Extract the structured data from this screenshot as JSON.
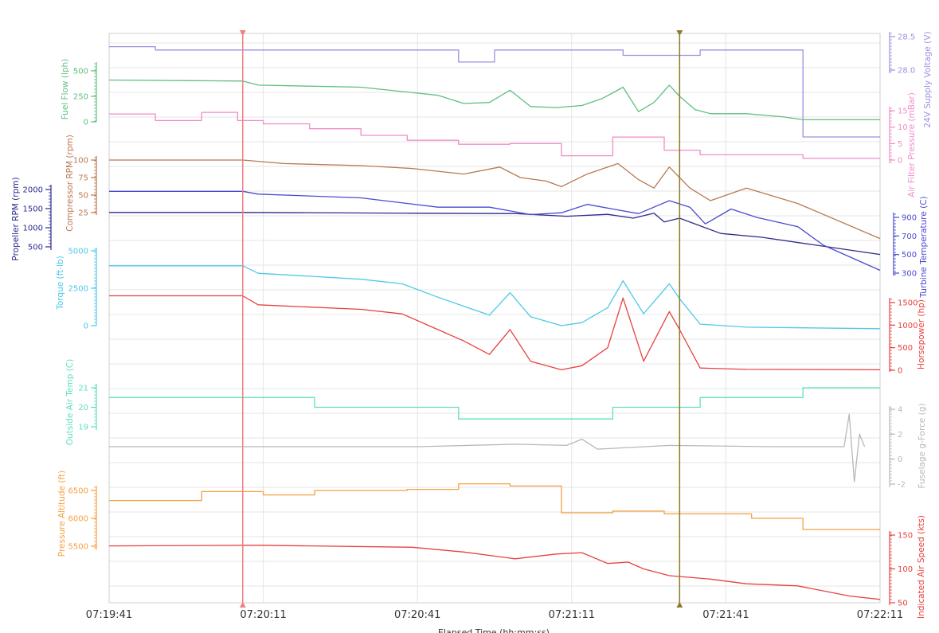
{
  "chart_data": {
    "type": "line",
    "title": "",
    "xlabel": "Elapsed Time (hh:mm:ss)",
    "x_ticks": [
      "07:19:41",
      "07:20:11",
      "07:20:41",
      "07:21:11",
      "07:21:41",
      "07:22:11"
    ],
    "x_range": [
      "07:19:41",
      "07:22:11"
    ],
    "grid": true,
    "cursors": [
      {
        "name": "cursor-1",
        "time": "07:20:07",
        "color": "#f08080"
      },
      {
        "name": "cursor-2",
        "time": "07:21:32",
        "color": "#8a7a2a"
      }
    ],
    "series": [
      {
        "name": "24V Supply Voltage (V)",
        "color": "#9f8fe0",
        "axis_side": "right",
        "ticks": [
          28.0,
          28.5
        ],
        "x": [
          "07:19:41",
          "07:19:50",
          "07:19:50",
          "07:20:49",
          "07:20:49",
          "07:20:56",
          "07:20:56",
          "07:21:21",
          "07:21:21",
          "07:21:36",
          "07:21:36",
          "07:21:56",
          "07:21:56",
          "07:22:11"
        ],
        "values": [
          28.35,
          28.35,
          28.3,
          28.3,
          28.12,
          28.12,
          28.3,
          28.3,
          28.22,
          28.22,
          28.3,
          28.3,
          27.0,
          27.0
        ]
      },
      {
        "name": "Fuel Flow (lph)",
        "color": "#5fbf7f",
        "axis_side": "left",
        "ticks": [
          0,
          250,
          500
        ],
        "x": [
          "07:19:41",
          "07:20:07",
          "07:20:10",
          "07:20:30",
          "07:20:45",
          "07:20:50",
          "07:20:55",
          "07:20:59",
          "07:21:03",
          "07:21:08",
          "07:21:13",
          "07:21:17",
          "07:21:21",
          "07:21:24",
          "07:21:27",
          "07:21:30",
          "07:21:32",
          "07:21:35",
          "07:21:38",
          "07:21:45",
          "07:21:52",
          "07:21:56",
          "07:22:11"
        ],
        "values": [
          410,
          400,
          360,
          340,
          260,
          180,
          190,
          310,
          150,
          140,
          160,
          230,
          340,
          100,
          190,
          360,
          250,
          120,
          80,
          80,
          50,
          20,
          20
        ]
      },
      {
        "name": "Air Filter Pressure (mBar)",
        "color": "#f08cc8",
        "axis_side": "right",
        "ticks": [
          0,
          5,
          10,
          15
        ],
        "x": [
          "07:19:41",
          "07:19:50",
          "07:19:50",
          "07:19:59",
          "07:19:59",
          "07:20:06",
          "07:20:06",
          "07:20:11",
          "07:20:11",
          "07:20:20",
          "07:20:20",
          "07:20:30",
          "07:20:30",
          "07:20:39",
          "07:20:39",
          "07:20:49",
          "07:20:49",
          "07:20:59",
          "07:20:59",
          "07:21:09",
          "07:21:09",
          "07:21:19",
          "07:21:19",
          "07:21:29",
          "07:21:29",
          "07:21:36",
          "07:21:36",
          "07:21:56",
          "07:21:56",
          "07:22:11"
        ],
        "values": [
          14,
          14,
          12,
          12,
          14.5,
          14.5,
          12,
          12,
          11,
          11,
          9.5,
          9.5,
          7.5,
          7.5,
          6,
          6,
          4.8,
          4.8,
          5,
          5,
          1.3,
          1.3,
          7,
          7,
          3,
          3,
          1.6,
          1.6,
          0.5,
          0.5
        ]
      },
      {
        "name": "Compressor RPM (rpm)",
        "color": "#b97850",
        "axis_side": "left",
        "ticks": [
          25,
          50,
          75,
          100
        ],
        "x": [
          "07:19:41",
          "07:20:07",
          "07:20:15",
          "07:20:30",
          "07:20:40",
          "07:20:50",
          "07:20:57",
          "07:21:01",
          "07:21:06",
          "07:21:09",
          "07:21:14",
          "07:21:20",
          "07:21:24",
          "07:21:27",
          "07:21:30",
          "07:21:34",
          "07:21:38",
          "07:21:45",
          "07:21:55",
          "07:22:11"
        ],
        "values": [
          100,
          100,
          95,
          92,
          88,
          80,
          90,
          75,
          70,
          62,
          80,
          95,
          72,
          60,
          90,
          60,
          42,
          60,
          38,
          -12
        ]
      },
      {
        "name": "Propeller RPM (rpm)",
        "color": "#2a2a8c",
        "axis_side": "left",
        "ticks": [
          500,
          1000,
          1500,
          2000
        ],
        "x": [
          "07:19:41",
          "07:20:07",
          "07:20:40",
          "07:21:00",
          "07:21:10",
          "07:21:18",
          "07:21:23",
          "07:21:27",
          "07:21:29",
          "07:21:32",
          "07:21:36",
          "07:21:40",
          "07:21:48",
          "07:22:11"
        ],
        "values": [
          1400,
          1400,
          1380,
          1370,
          1300,
          1350,
          1250,
          1380,
          1150,
          1250,
          1050,
          850,
          750,
          300
        ]
      },
      {
        "name": "Turbine Temperature (C)",
        "color": "#4a4ad0",
        "axis_side": "right",
        "ticks": [
          300,
          500,
          700,
          900
        ],
        "x": [
          "07:19:41",
          "07:20:07",
          "07:20:10",
          "07:20:30",
          "07:20:45",
          "07:20:55",
          "07:21:03",
          "07:21:09",
          "07:21:14",
          "07:21:19",
          "07:21:24",
          "07:21:30",
          "07:21:34",
          "07:21:37",
          "07:21:42",
          "07:21:47",
          "07:21:55",
          "07:22:00",
          "07:22:11"
        ],
        "values": [
          1180,
          1180,
          1150,
          1110,
          1010,
          1010,
          930,
          950,
          1040,
          990,
          940,
          1080,
          1010,
          830,
          990,
          900,
          800,
          600,
          330
        ]
      },
      {
        "name": "Torque (ft-lb)",
        "color": "#4ec8e8",
        "axis_side": "left",
        "ticks": [
          0,
          2500,
          5000
        ],
        "x": [
          "07:19:41",
          "07:20:07",
          "07:20:10",
          "07:20:30",
          "07:20:38",
          "07:20:45",
          "07:20:50",
          "07:20:55",
          "07:20:59",
          "07:21:03",
          "07:21:09",
          "07:21:13",
          "07:21:18",
          "07:21:21",
          "07:21:25",
          "07:21:30",
          "07:21:32",
          "07:21:36",
          "07:21:45",
          "07:22:11"
        ],
        "values": [
          4000,
          4000,
          3500,
          3100,
          2800,
          1900,
          1300,
          700,
          2200,
          600,
          0,
          200,
          1200,
          3000,
          800,
          2800,
          1800,
          100,
          -100,
          -200
        ]
      },
      {
        "name": "Horsepower (hp)",
        "color": "#e84040",
        "axis_side": "right",
        "ticks": [
          0,
          500,
          1000,
          1500
        ],
        "x": [
          "07:19:41",
          "07:20:07",
          "07:20:10",
          "07:20:30",
          "07:20:38",
          "07:20:45",
          "07:20:50",
          "07:20:55",
          "07:20:59",
          "07:21:03",
          "07:21:09",
          "07:21:13",
          "07:21:18",
          "07:21:21",
          "07:21:25",
          "07:21:30",
          "07:21:32",
          "07:21:36",
          "07:21:45",
          "07:22:11"
        ],
        "values": [
          1650,
          1650,
          1450,
          1350,
          1250,
          900,
          650,
          350,
          900,
          200,
          10,
          100,
          500,
          1600,
          200,
          1300,
          900,
          50,
          20,
          10
        ]
      },
      {
        "name": "Outside Air Temp (C)",
        "color": "#5fe0c0",
        "axis_side": "left",
        "ticks": [
          19,
          20,
          21
        ],
        "x": [
          "07:19:41",
          "07:20:21",
          "07:20:21",
          "07:20:49",
          "07:20:49",
          "07:21:19",
          "07:21:19",
          "07:21:36",
          "07:21:36",
          "07:21:56",
          "07:21:56",
          "07:22:11"
        ],
        "values": [
          20.5,
          20.5,
          20,
          20,
          19.4,
          19.4,
          20,
          20,
          20.5,
          20.5,
          21,
          21
        ]
      },
      {
        "name": "Fuselage g-Force (g)",
        "color": "#b8b8b8",
        "axis_side": "right",
        "ticks": [
          -2,
          0,
          2,
          4
        ],
        "x": [
          "07:19:41",
          "07:20:11",
          "07:20:41",
          "07:21:00",
          "07:21:10",
          "07:21:13",
          "07:21:16",
          "07:21:30",
          "07:21:50",
          "07:22:04",
          "07:22:05",
          "07:22:06",
          "07:22:07",
          "07:22:08"
        ],
        "values": [
          1.0,
          1.0,
          1.0,
          1.2,
          1.1,
          1.6,
          0.8,
          1.1,
          1.0,
          1.0,
          3.6,
          -1.8,
          2.0,
          1.0
        ]
      },
      {
        "name": "Pressure Altitude (ft)",
        "color": "#f5a040",
        "axis_side": "left",
        "ticks": [
          5500,
          6000,
          6500
        ],
        "x": [
          "07:19:41",
          "07:19:59",
          "07:19:59",
          "07:20:11",
          "07:20:11",
          "07:20:21",
          "07:20:21",
          "07:20:39",
          "07:20:39",
          "07:20:49",
          "07:20:49",
          "07:20:59",
          "07:20:59",
          "07:21:09",
          "07:21:09",
          "07:21:19",
          "07:21:19",
          "07:21:29",
          "07:21:29",
          "07:21:46",
          "07:21:46",
          "07:21:56",
          "07:21:56",
          "07:22:11"
        ],
        "values": [
          6320,
          6320,
          6480,
          6480,
          6420,
          6420,
          6500,
          6500,
          6520,
          6520,
          6620,
          6620,
          6580,
          6580,
          6100,
          6100,
          6130,
          6130,
          6080,
          6080,
          6000,
          6000,
          5800,
          5800
        ]
      },
      {
        "name": "Indicated Air Speed (kts)",
        "color": "#e84040",
        "axis_side": "right",
        "ticks": [
          50,
          100,
          150
        ],
        "x": [
          "07:19:41",
          "07:20:10",
          "07:20:40",
          "07:20:50",
          "07:21:00",
          "07:21:08",
          "07:21:13",
          "07:21:18",
          "07:21:22",
          "07:21:25",
          "07:21:30",
          "07:21:38",
          "07:21:45",
          "07:21:55",
          "07:22:05",
          "07:22:11"
        ],
        "values": [
          134,
          135,
          132,
          125,
          115,
          122,
          124,
          108,
          110,
          100,
          90,
          85,
          78,
          75,
          60,
          55
        ]
      }
    ]
  }
}
